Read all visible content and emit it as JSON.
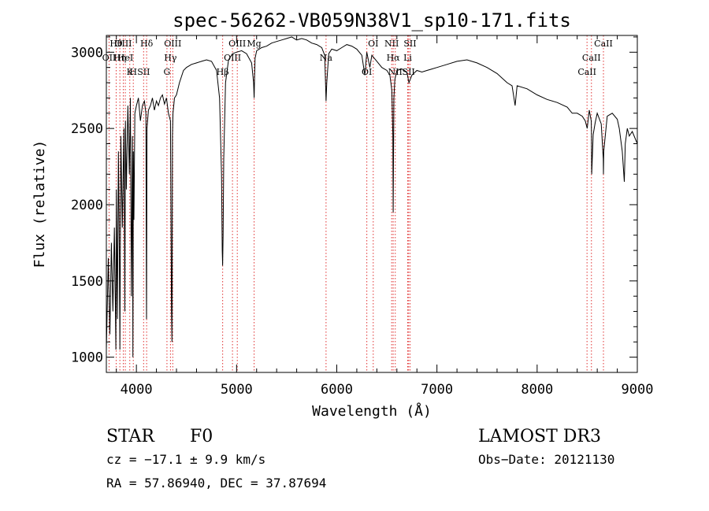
{
  "chart_data": {
    "type": "line",
    "title": "spec-56262-VB059N38V1_sp10-171.fits",
    "xlabel": "Wavelength (Å)",
    "ylabel": "Flux (relative)",
    "xlim": [
      3700,
      9000
    ],
    "ylim": [
      900,
      3110
    ],
    "xticks": [
      4000,
      5000,
      6000,
      7000,
      8000,
      9000
    ],
    "yticks": [
      1000,
      1500,
      2000,
      2500,
      3000
    ],
    "series": [
      {
        "name": "flux",
        "x": [
          3700,
          3720,
          3735,
          3750,
          3765,
          3780,
          3795,
          3800,
          3810,
          3820,
          3830,
          3835,
          3845,
          3860,
          3875,
          3885,
          3890,
          3900,
          3915,
          3930,
          3940,
          3950,
          3960,
          3965,
          3970,
          3975,
          3985,
          4000,
          4020,
          4040,
          4060,
          4080,
          4095,
          4101,
          4106,
          4120,
          4140,
          4160,
          4180,
          4200,
          4220,
          4240,
          4260,
          4280,
          4300,
          4320,
          4340,
          4350,
          4355,
          4360,
          4365,
          4380,
          4400,
          4430,
          4470,
          4500,
          4550,
          4600,
          4650,
          4700,
          4750,
          4800,
          4830,
          4850,
          4857,
          4861,
          4865,
          4872,
          4890,
          4920,
          4960,
          5000,
          5050,
          5100,
          5150,
          5170,
          5175,
          5180,
          5185,
          5200,
          5250,
          5300,
          5350,
          5400,
          5450,
          5500,
          5550,
          5600,
          5650,
          5700,
          5750,
          5800,
          5850,
          5880,
          5893,
          5900,
          5920,
          5950,
          6000,
          6050,
          6100,
          6150,
          6200,
          6250,
          6280,
          6300,
          6330,
          6350,
          6400,
          6450,
          6500,
          6530,
          6550,
          6560,
          6563,
          6566,
          6570,
          6580,
          6600,
          6650,
          6700,
          6720,
          6750,
          6800,
          6850,
          6900,
          6950,
          7000,
          7100,
          7200,
          7300,
          7400,
          7500,
          7600,
          7700,
          7750,
          7780,
          7800,
          7900,
          8000,
          8100,
          8200,
          8300,
          8350,
          8400,
          8450,
          8480,
          8500,
          8520,
          8540,
          8542,
          8545,
          8560,
          8580,
          8600,
          8640,
          8660,
          8662,
          8665,
          8680,
          8700,
          8750,
          8800,
          8820,
          8850,
          8870,
          8880,
          8900,
          8920,
          8950,
          9000
        ],
        "y": [
          1050,
          1650,
          1150,
          1750,
          1300,
          1850,
          1050,
          2100,
          1250,
          2350,
          1700,
          1050,
          2450,
          1850,
          2500,
          1300,
          2550,
          2100,
          2650,
          2200,
          2700,
          1400,
          2450,
          1000,
          2350,
          1900,
          2600,
          2650,
          2700,
          2550,
          2650,
          2680,
          2600,
          1250,
          2500,
          2620,
          2650,
          2700,
          2620,
          2680,
          2650,
          2700,
          2720,
          2660,
          2700,
          2600,
          2550,
          1300,
          1100,
          2450,
          2600,
          2700,
          2720,
          2800,
          2880,
          2900,
          2920,
          2930,
          2940,
          2950,
          2940,
          2880,
          2700,
          2200,
          1700,
          1600,
          1800,
          2300,
          2800,
          2950,
          2990,
          3000,
          3010,
          2990,
          2930,
          2800,
          2700,
          2850,
          2960,
          3010,
          3030,
          3040,
          3060,
          3070,
          3080,
          3090,
          3100,
          3080,
          3090,
          3080,
          3060,
          3050,
          3030,
          2980,
          2680,
          2800,
          2990,
          3020,
          3010,
          3030,
          3050,
          3040,
          3020,
          2980,
          2850,
          3000,
          2900,
          2980,
          2940,
          2900,
          2880,
          2850,
          2750,
          2450,
          1950,
          2300,
          2700,
          2820,
          2880,
          2890,
          2870,
          2800,
          2850,
          2880,
          2870,
          2880,
          2890,
          2900,
          2920,
          2940,
          2950,
          2930,
          2900,
          2860,
          2800,
          2780,
          2650,
          2780,
          2760,
          2720,
          2690,
          2670,
          2640,
          2600,
          2600,
          2580,
          2550,
          2500,
          2620,
          2550,
          2480,
          2200,
          2460,
          2540,
          2600,
          2530,
          2300,
          2200,
          2350,
          2450,
          2580,
          2600,
          2560,
          2500,
          2350,
          2150,
          2400,
          2500,
          2450,
          2480,
          2400
        ]
      }
    ],
    "lines": [
      {
        "label": "Hθ",
        "wave": 3798
      },
      {
        "label": "OII",
        "wave": 3727
      },
      {
        "label": "K",
        "wave": 3934
      },
      {
        "label": "Hδ",
        "wave": 4102
      },
      {
        "label": "HeI",
        "wave": 3889
      },
      {
        "label": "SII",
        "wave": 4072
      },
      {
        "label": "OIII",
        "wave": 3869
      },
      {
        "label": "Hη",
        "wave": 3835
      },
      {
        "label": "H",
        "wave": 3969
      },
      {
        "label": "OIII",
        "wave": 4363
      },
      {
        "label": "Hγ",
        "wave": 4340
      },
      {
        "label": "G",
        "wave": 4305
      },
      {
        "label": "OIII",
        "wave": 5007
      },
      {
        "label": "OIII",
        "wave": 4959
      },
      {
        "label": "Hβ",
        "wave": 4861
      },
      {
        "label": "Mg",
        "wave": 5175
      },
      {
        "label": "Na",
        "wave": 5893
      },
      {
        "label": "OI",
        "wave": 6300
      },
      {
        "label": "OI",
        "wave": 6364
      },
      {
        "label": "Hα",
        "wave": 6563
      },
      {
        "label": "SII",
        "wave": 6717
      },
      {
        "label": "NII",
        "wave": 6548
      },
      {
        "label": "Li",
        "wave": 6708
      },
      {
        "label": "NII",
        "wave": 6584
      },
      {
        "label": "SII",
        "wave": 6731
      },
      {
        "label": "CaII",
        "wave": 8542
      },
      {
        "label": "CaII",
        "wave": 8498
      },
      {
        "label": "CaII",
        "wave": 8662
      }
    ]
  },
  "info": {
    "objtype": "STAR",
    "subclass": "F0",
    "cz_line": "cz = −17.1 ± 9.9 km/s",
    "radec_line": "RA =  57.86940, DEC =  37.87694",
    "survey": "LAMOST DR3",
    "obsdate_line": "Obs−Date: 20121130"
  },
  "colors": {
    "spectrum": "#000000",
    "line_marker": "#e03030",
    "axis": "#000000",
    "background": "#ffffff"
  }
}
